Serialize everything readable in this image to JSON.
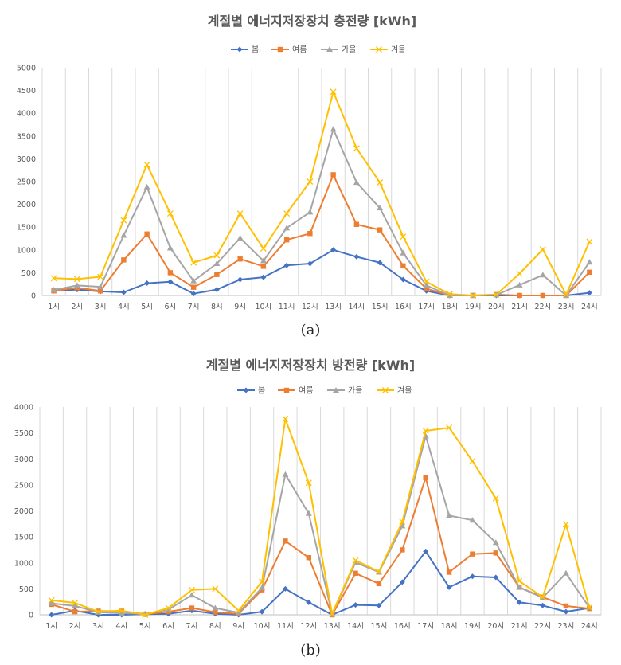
{
  "chart_data": [
    {
      "type": "line",
      "title": "계절별 에너지저장장치 충전량 [kWh]",
      "caption": "(a)",
      "categories": [
        "1시",
        "2시",
        "3시",
        "4시",
        "5시",
        "6시",
        "7시",
        "8시",
        "9시",
        "10시",
        "11시",
        "12시",
        "13시",
        "14시",
        "15시",
        "16시",
        "17시",
        "18시",
        "19시",
        "20시",
        "21시",
        "22시",
        "23시",
        "24시"
      ],
      "ylim": [
        0,
        5000
      ],
      "yticks": [
        0,
        500,
        1000,
        1500,
        2000,
        2500,
        3000,
        3500,
        4000,
        4500,
        5000
      ],
      "grid": "vertical",
      "legend": "top",
      "series": [
        {
          "name": "봄",
          "color": "#4472C4",
          "marker": "diamond",
          "values": [
            100,
            130,
            90,
            70,
            270,
            300,
            40,
            130,
            350,
            400,
            660,
            700,
            1000,
            850,
            720,
            350,
            100,
            0,
            0,
            0,
            0,
            0,
            0,
            60
          ]
        },
        {
          "name": "여름",
          "color": "#ED7D31",
          "marker": "square",
          "values": [
            100,
            170,
            100,
            780,
            1350,
            500,
            180,
            460,
            800,
            640,
            1220,
            1360,
            2650,
            1560,
            1440,
            650,
            150,
            0,
            0,
            20,
            0,
            0,
            0,
            510
          ]
        },
        {
          "name": "가을",
          "color": "#A5A5A5",
          "marker": "triangle",
          "values": [
            120,
            220,
            190,
            1320,
            2380,
            1040,
            320,
            700,
            1260,
            760,
            1480,
            1830,
            3650,
            2480,
            1920,
            930,
            220,
            0,
            0,
            10,
            230,
            450,
            0,
            730
          ]
        },
        {
          "name": "겨울",
          "color": "#FFC000",
          "marker": "x",
          "values": [
            380,
            360,
            410,
            1650,
            2870,
            1800,
            720,
            880,
            1800,
            1030,
            1800,
            2500,
            4470,
            3230,
            2480,
            1290,
            300,
            30,
            0,
            20,
            480,
            1010,
            20,
            1180
          ]
        }
      ]
    },
    {
      "type": "line",
      "title": "계절별 에너지저장장치 방전량 [kWh]",
      "caption": "(b)",
      "categories": [
        "1시",
        "2시",
        "3시",
        "4시",
        "5시",
        "6시",
        "7시",
        "8시",
        "9시",
        "10시",
        "11시",
        "12시",
        "13시",
        "14시",
        "15시",
        "16시",
        "17시",
        "18시",
        "19시",
        "20시",
        "21시",
        "22시",
        "23시",
        "24시"
      ],
      "ylim": [
        0,
        4000
      ],
      "yticks": [
        0,
        500,
        1000,
        1500,
        2000,
        2500,
        3000,
        3500,
        4000
      ],
      "grid": "vertical",
      "legend": "top",
      "series": [
        {
          "name": "봄",
          "color": "#4472C4",
          "marker": "diamond",
          "values": [
            0,
            80,
            0,
            0,
            10,
            20,
            80,
            20,
            0,
            60,
            500,
            240,
            0,
            190,
            180,
            630,
            1220,
            530,
            740,
            720,
            240,
            180,
            60,
            130
          ]
        },
        {
          "name": "여름",
          "color": "#ED7D31",
          "marker": "square",
          "values": [
            200,
            60,
            70,
            70,
            10,
            60,
            130,
            50,
            20,
            480,
            1420,
            1100,
            0,
            800,
            600,
            1250,
            2640,
            820,
            1170,
            1190,
            530,
            340,
            170,
            120
          ]
        },
        {
          "name": "가을",
          "color": "#A5A5A5",
          "marker": "triangle",
          "values": [
            220,
            170,
            50,
            30,
            20,
            100,
            380,
            130,
            40,
            520,
            2700,
            1950,
            10,
            1010,
            820,
            1710,
            3440,
            1910,
            1820,
            1390,
            530,
            330,
            800,
            140
          ]
        },
        {
          "name": "겨울",
          "color": "#FFC000",
          "marker": "x",
          "values": [
            280,
            230,
            60,
            80,
            0,
            130,
            480,
            500,
            80,
            640,
            3770,
            2540,
            20,
            1050,
            830,
            1790,
            3540,
            3600,
            2960,
            2240,
            650,
            340,
            1740,
            140
          ]
        }
      ]
    }
  ]
}
